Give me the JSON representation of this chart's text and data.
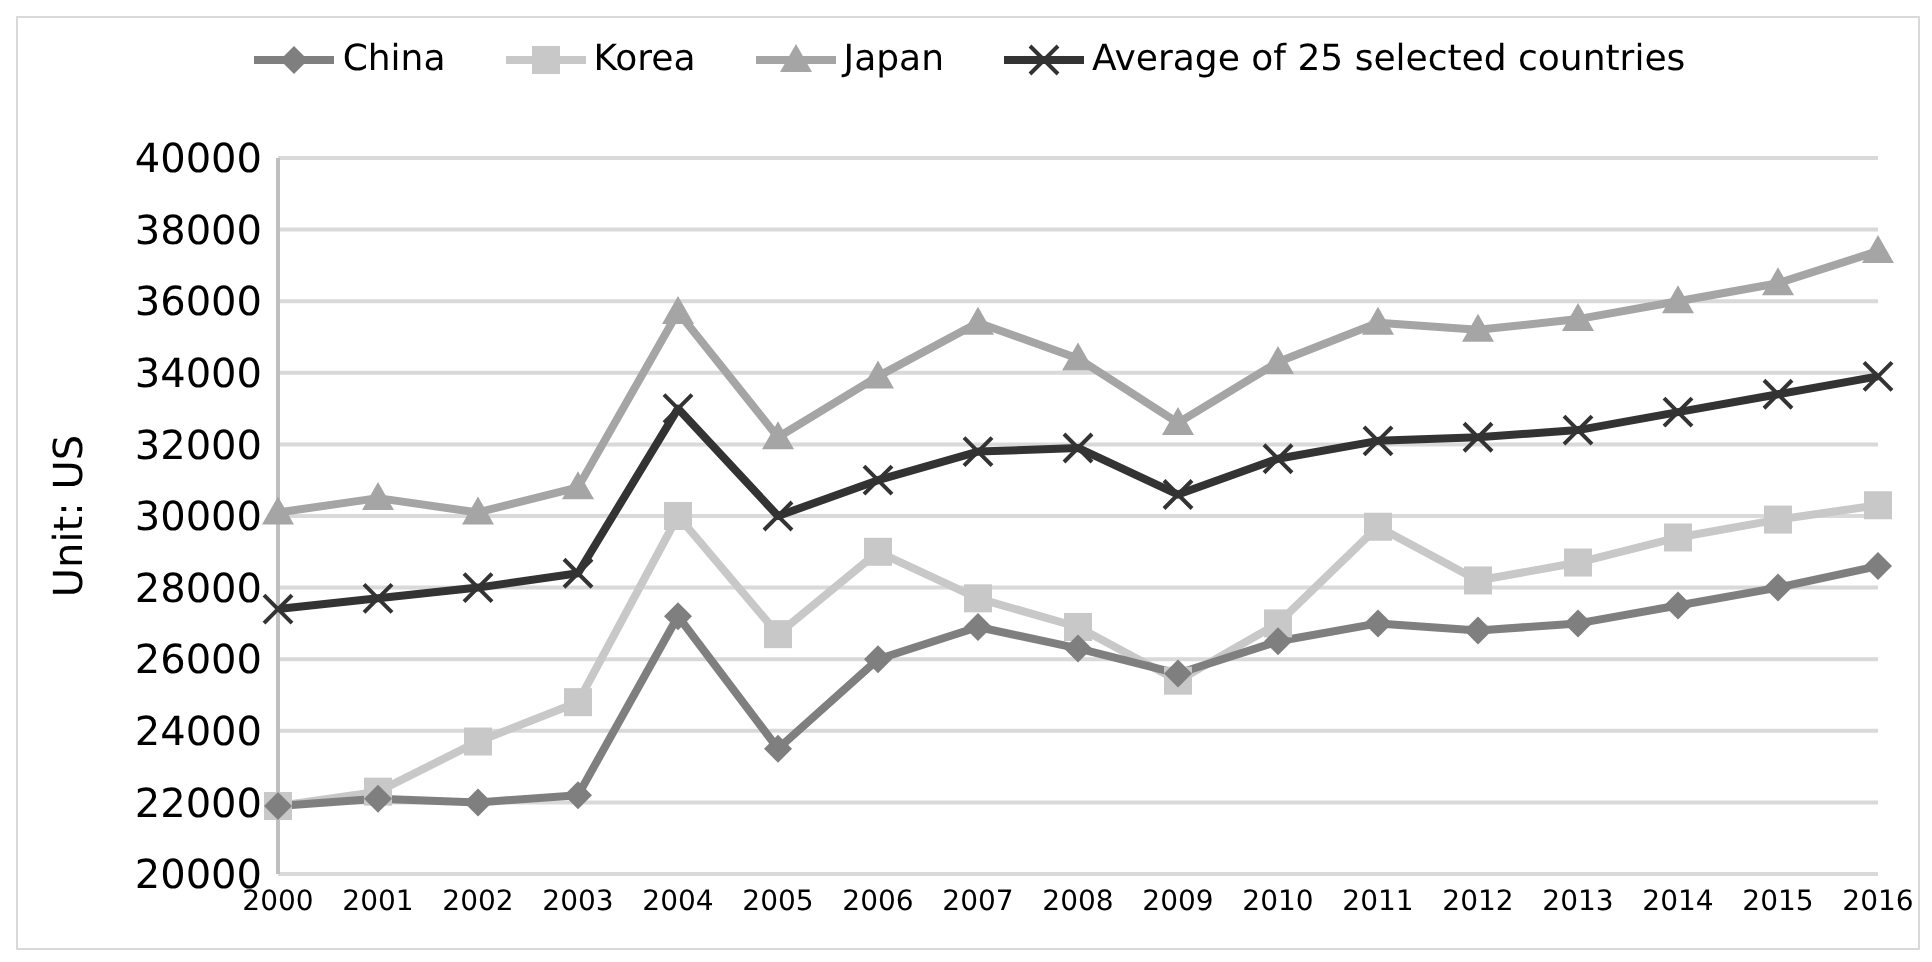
{
  "chart_data": {
    "type": "line",
    "ylabel": "Unit: US",
    "categories": [
      "2000",
      "2001",
      "2002",
      "2003",
      "2004",
      "2005",
      "2006",
      "2007",
      "2008",
      "2009",
      "2010",
      "2011",
      "2012",
      "2013",
      "2014",
      "2015",
      "2016"
    ],
    "series": [
      {
        "name": "China",
        "color": "#7f7f7f",
        "marker": "diamond",
        "values": [
          21900,
          22100,
          22000,
          22200,
          27200,
          23500,
          26000,
          26900,
          26300,
          25600,
          26500,
          27000,
          26800,
          27000,
          27500,
          28000,
          28600
        ]
      },
      {
        "name": "Korea",
        "color": "#c8c8c8",
        "marker": "square",
        "values": [
          21900,
          22300,
          23700,
          24800,
          30000,
          26700,
          29000,
          27700,
          26900,
          25400,
          27000,
          29700,
          28200,
          28700,
          29400,
          29900,
          30300
        ]
      },
      {
        "name": "Japan",
        "color": "#a5a5a5",
        "marker": "triangle",
        "values": [
          30100,
          30500,
          30100,
          30800,
          35700,
          32200,
          33900,
          35400,
          34400,
          32600,
          34300,
          35400,
          35200,
          35500,
          36000,
          36500,
          37400
        ]
      },
      {
        "name": "Average of 25 selected countries",
        "color": "#333333",
        "marker": "cross",
        "values": [
          27400,
          27700,
          28000,
          28400,
          33000,
          30000,
          31000,
          31800,
          31900,
          30600,
          31600,
          32100,
          32200,
          32400,
          32900,
          33400,
          33900
        ]
      }
    ],
    "ylim": [
      20000,
      40000
    ],
    "yticks": [
      20000,
      22000,
      24000,
      26000,
      28000,
      30000,
      32000,
      34000,
      36000,
      38000,
      40000
    ],
    "grid": "y",
    "legend": "top",
    "line_style": "solid"
  }
}
